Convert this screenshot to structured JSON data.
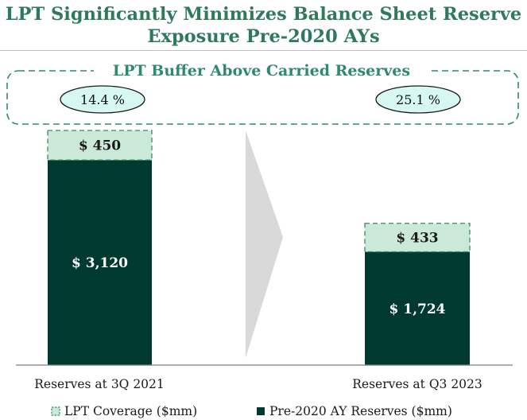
{
  "header": {
    "title_line1": "LPT Significantly Minimizes Balance Sheet Reserve",
    "title_line2": "Exposure Pre-2020 AYs"
  },
  "chart_data": {
    "type": "bar",
    "stacked": true,
    "categories": [
      "Reserves at 3Q 2021",
      "Reserves at Q3 2023"
    ],
    "series": [
      {
        "name": "Pre-2020 AY Reserves ($mm)",
        "values": [
          3120,
          1724
        ],
        "labels": [
          "$ 3,120",
          "$ 1,724"
        ],
        "color": "#00392f"
      },
      {
        "name": "LPT Coverage ($mm)",
        "values": [
          450,
          433
        ],
        "labels": [
          "$ 450",
          "$ 433"
        ],
        "color": "#cbe9d9"
      }
    ],
    "annotation": {
      "title": "LPT Buffer Above Carried Reserves",
      "values": [
        "14.4 %",
        "25.1 %"
      ]
    },
    "legend": [
      {
        "name": "LPT Coverage ($mm)",
        "marker": "dashed-square"
      },
      {
        "name": "Pre-2020 AY Reserves ($mm)",
        "marker": "filled-square"
      }
    ],
    "legend_position": "bottom",
    "ylim": [
      0,
      3700
    ]
  },
  "colors": {
    "title": "#2e7a5b",
    "reserves": "#00392f",
    "coverage": "#cbe9d9",
    "coverage_border": "#3a8a6a",
    "bubble_fill": "#d6f7f2",
    "arrow": "#d9d9d9",
    "axis": "#7f7f7f"
  }
}
